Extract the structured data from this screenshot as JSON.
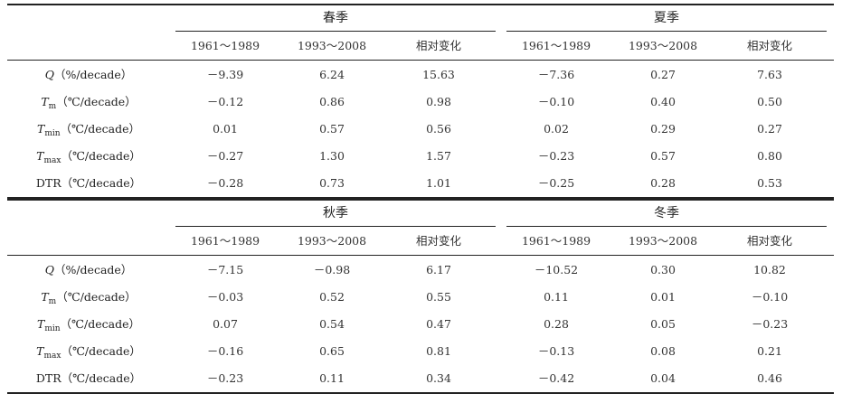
{
  "columns": [
    "1961～1989",
    "1993～2008",
    "相对变化"
  ],
  "row_labels": [
    {
      "sym": "Q",
      "sub": "",
      "unit": "（%/decade）"
    },
    {
      "sym": "T",
      "sub": "m",
      "unit": "（℃/decade）"
    },
    {
      "sym": "T",
      "sub": "min",
      "unit": "（℃/decade）"
    },
    {
      "sym": "T",
      "sub": "max",
      "unit": "（℃/decade）"
    },
    {
      "sym": "DTR",
      "sub": "",
      "unit": "（℃/decade）"
    }
  ],
  "seasons": {
    "spring": {
      "name": "春季",
      "rows": [
        [
          "－9.39",
          "6.24",
          "15.63"
        ],
        [
          "－0.12",
          "0.86",
          "0.98"
        ],
        [
          "0.01",
          "0.57",
          "0.56"
        ],
        [
          "－0.27",
          "1.30",
          "1.57"
        ],
        [
          "－0.28",
          "0.73",
          "1.01"
        ]
      ]
    },
    "summer": {
      "name": "夏季",
      "rows": [
        [
          "－7.36",
          "0.27",
          "7.63"
        ],
        [
          "－0.10",
          "0.40",
          "0.50"
        ],
        [
          "0.02",
          "0.29",
          "0.27"
        ],
        [
          "－0.23",
          "0.57",
          "0.80"
        ],
        [
          "－0.25",
          "0.28",
          "0.53"
        ]
      ]
    },
    "autumn": {
      "name": "秋季",
      "rows": [
        [
          "－7.15",
          "－0.98",
          "6.17"
        ],
        [
          "－0.03",
          "0.52",
          "0.55"
        ],
        [
          "0.07",
          "0.54",
          "0.47"
        ],
        [
          "－0.16",
          "0.65",
          "0.81"
        ],
        [
          "－0.23",
          "0.11",
          "0.34"
        ]
      ]
    },
    "winter": {
      "name": "冬季",
      "rows": [
        [
          "－10.52",
          "0.30",
          "10.82"
        ],
        [
          "0.11",
          "0.01",
          "－0.10"
        ],
        [
          "0.28",
          "0.05",
          "－0.23"
        ],
        [
          "－0.13",
          "0.08",
          "0.21"
        ],
        [
          "－0.42",
          "0.04",
          "0.46"
        ]
      ]
    }
  }
}
